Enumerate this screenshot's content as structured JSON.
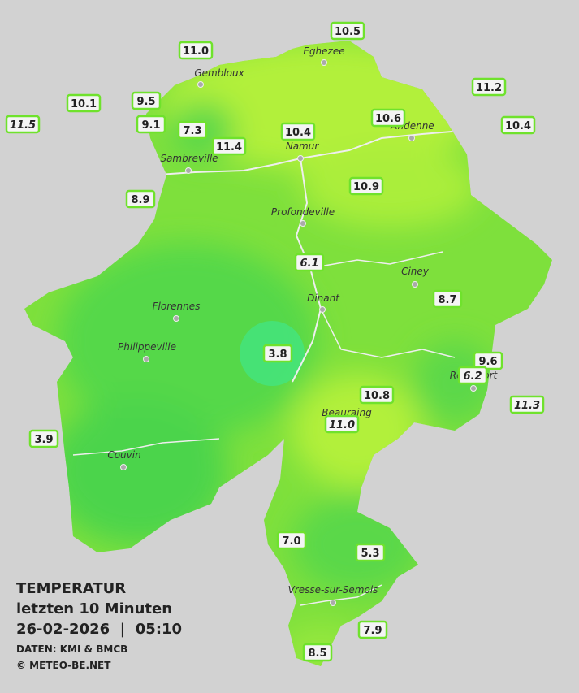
{
  "stations": [
    {
      "label": "11.0"
    },
    {
      "label": "10.5"
    },
    {
      "label": "11.2"
    },
    {
      "label": "10.1"
    },
    {
      "label": "9.5"
    },
    {
      "label": "11.5",
      "italic": true
    },
    {
      "label": "9.1"
    },
    {
      "label": "7.3"
    },
    {
      "label": "10.4"
    },
    {
      "label": "10.6"
    },
    {
      "label": "10.4"
    },
    {
      "label": "11.4"
    },
    {
      "label": "10.9"
    },
    {
      "label": "8.9"
    },
    {
      "label": "6.1",
      "italic": true
    },
    {
      "label": "8.7"
    },
    {
      "label": "3.8"
    },
    {
      "label": "9.6"
    },
    {
      "label": "6.2",
      "italic": true
    },
    {
      "label": "10.8"
    },
    {
      "label": "11.3",
      "italic": true
    },
    {
      "label": "11.0",
      "italic": true
    },
    {
      "label": "3.9"
    },
    {
      "label": "7.0"
    },
    {
      "label": "5.3"
    },
    {
      "label": "7.9"
    },
    {
      "label": "8.5"
    }
  ],
  "cities": [
    "Eghezee",
    "Gembloux",
    "Andenne",
    "Namur",
    "Sambreville",
    "Profondeville",
    "Ciney",
    "Dinant",
    "Florennes",
    "Philippeville",
    "Rochefort",
    "Beauraing",
    "Couvin",
    "Vresse-sur-Semois"
  ],
  "footer": {
    "title": "TEMPERATUR",
    "period": "letzten 10 Minuten",
    "datetime": "26-02-2026  |  05:10",
    "source": "DATEN: KMI & BMCB",
    "copyright": "© METEO-BE.NET"
  }
}
